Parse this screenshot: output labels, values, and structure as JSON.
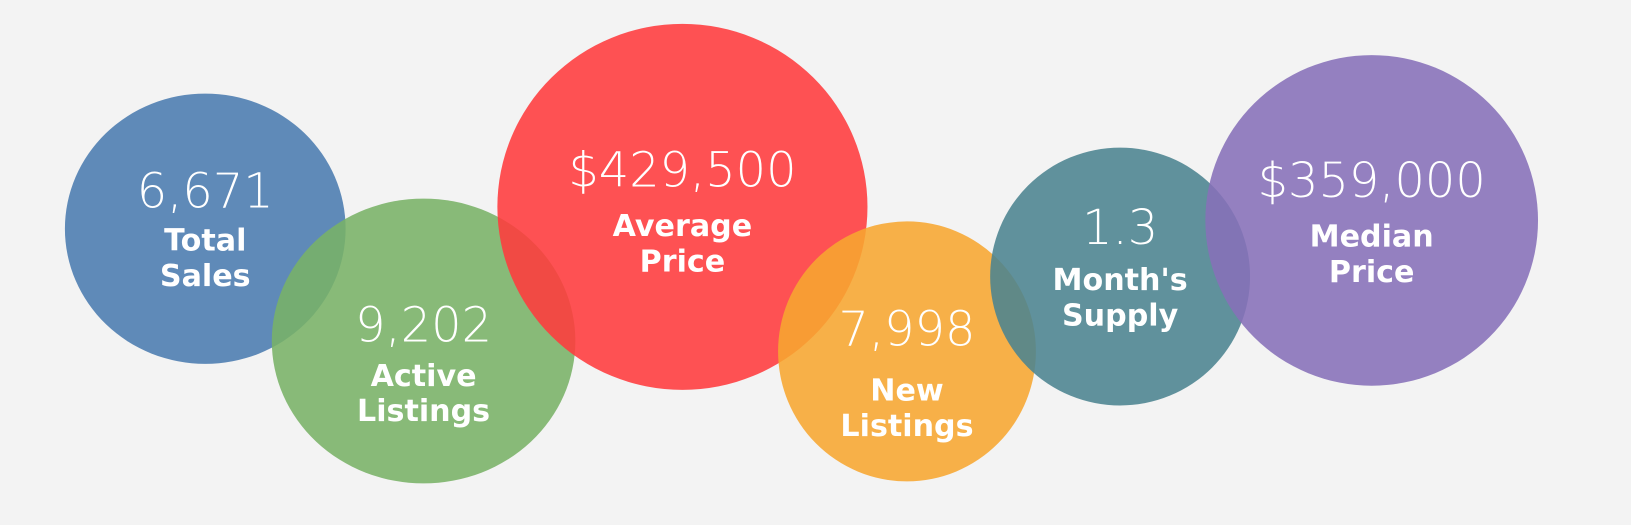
{
  "items": [
    {
      "value": "6,671",
      "label": [
        "Total",
        "Sales"
      ]
    },
    {
      "value": "9,202",
      "label": [
        "Active",
        "Listings"
      ]
    },
    {
      "value": "$429,500",
      "label": [
        "Average",
        "Price"
      ]
    },
    {
      "value": "7,998",
      "label": [
        "New",
        "Listings"
      ]
    },
    {
      "value": "1.3",
      "label": [
        "Month's",
        "Supply"
      ]
    },
    {
      "value": "$359,000",
      "label": [
        "Median",
        "Price"
      ]
    }
  ]
}
